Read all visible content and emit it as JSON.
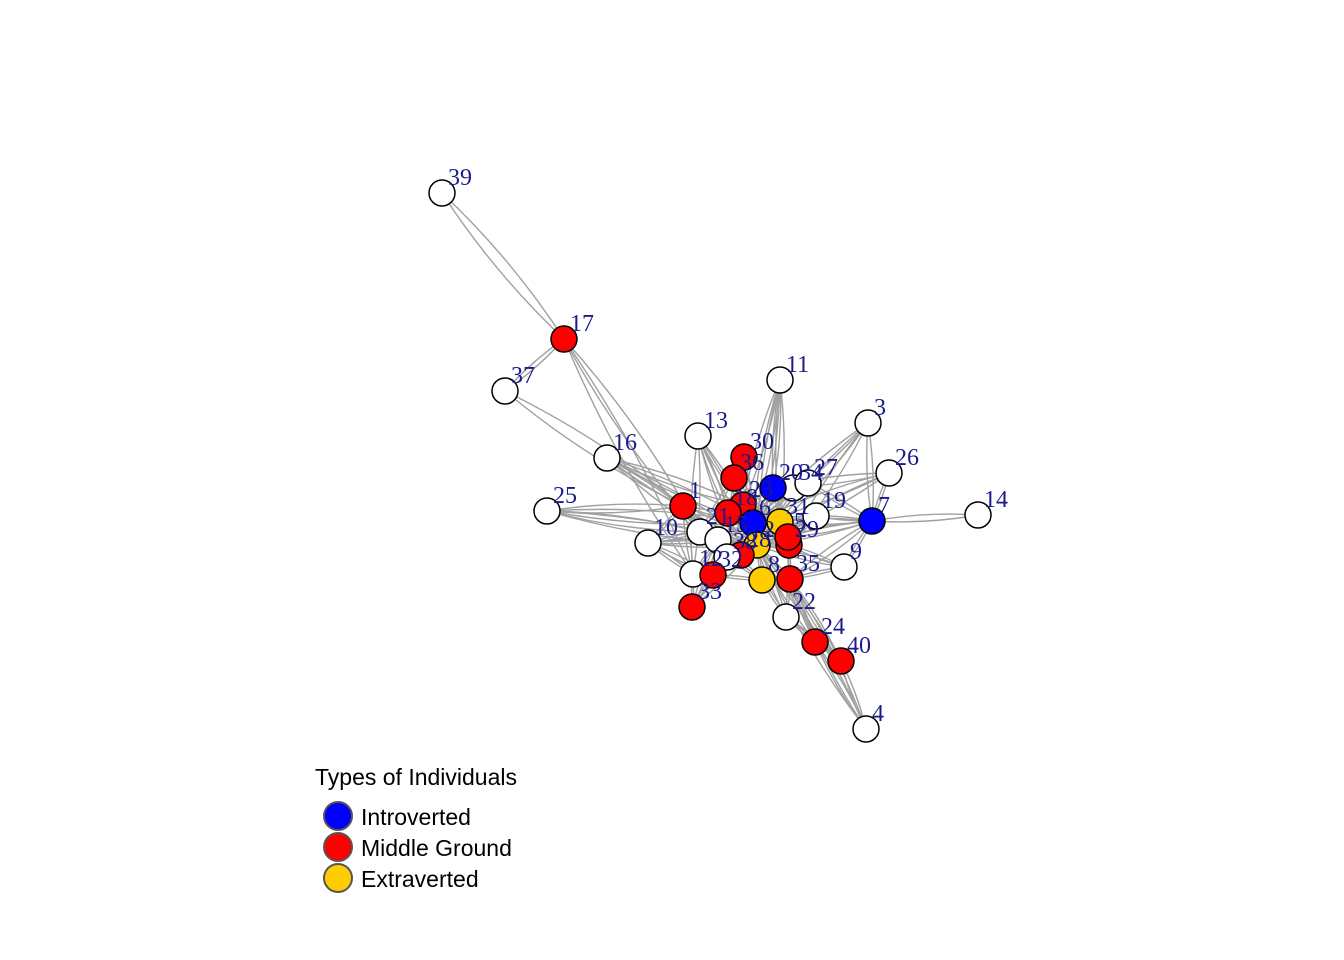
{
  "colors": {
    "introverted": "#0000ff",
    "middle": "#ff0000",
    "extraverted": "#ffcc00",
    "unclassified": "#ffffff",
    "label": "#1a1a8c",
    "edge": "#a0a0a0"
  },
  "legend": {
    "title": "Types of Individuals",
    "items": [
      {
        "label": "Introverted",
        "color": "#0000ff"
      },
      {
        "label": "Middle Ground",
        "color": "#ff0000"
      },
      {
        "label": "Extraverted",
        "color": "#ffcc00"
      }
    ]
  },
  "network": {
    "nodes": [
      {
        "id": "39",
        "type": "none"
      },
      {
        "id": "17",
        "type": "middle"
      },
      {
        "id": "37",
        "type": "none"
      },
      {
        "id": "11",
        "type": "none"
      },
      {
        "id": "3",
        "type": "none"
      },
      {
        "id": "13",
        "type": "none"
      },
      {
        "id": "30",
        "type": "middle"
      },
      {
        "id": "16",
        "type": "none"
      },
      {
        "id": "36",
        "type": "middle"
      },
      {
        "id": "26",
        "type": "none"
      },
      {
        "id": "34",
        "type": "none"
      },
      {
        "id": "27",
        "type": "none"
      },
      {
        "id": "20",
        "type": "introverted"
      },
      {
        "id": "14",
        "type": "none"
      },
      {
        "id": "1",
        "type": "middle"
      },
      {
        "id": "25",
        "type": "none"
      },
      {
        "id": "23",
        "type": "middle"
      },
      {
        "id": "19",
        "type": "none"
      },
      {
        "id": "7",
        "type": "introverted"
      },
      {
        "id": "18",
        "type": "middle"
      },
      {
        "id": "21",
        "type": "none"
      },
      {
        "id": "12",
        "type": "none"
      },
      {
        "id": "31",
        "type": "extraverted"
      },
      {
        "id": "10",
        "type": "none"
      },
      {
        "id": "6",
        "type": "introverted"
      },
      {
        "id": "2",
        "type": "extraverted"
      },
      {
        "id": "29",
        "type": "middle"
      },
      {
        "id": "9",
        "type": "none"
      },
      {
        "id": "15",
        "type": "none"
      },
      {
        "id": "5",
        "type": "middle"
      },
      {
        "id": "28",
        "type": "middle"
      },
      {
        "id": "38",
        "type": "none"
      },
      {
        "id": "8",
        "type": "extraverted"
      },
      {
        "id": "35",
        "type": "middle"
      },
      {
        "id": "32",
        "type": "middle"
      },
      {
        "id": "33",
        "type": "middle"
      },
      {
        "id": "22",
        "type": "none"
      },
      {
        "id": "24",
        "type": "middle"
      },
      {
        "id": "40",
        "type": "middle"
      },
      {
        "id": "4",
        "type": "none"
      }
    ],
    "edges": [
      [
        "39",
        "17"
      ],
      [
        "17",
        "37"
      ],
      [
        "37",
        "1"
      ],
      [
        "17",
        "12"
      ],
      [
        "17",
        "21"
      ],
      [
        "11",
        "2"
      ],
      [
        "11",
        "23"
      ],
      [
        "11",
        "31"
      ],
      [
        "11",
        "6"
      ],
      [
        "11",
        "20"
      ],
      [
        "3",
        "7"
      ],
      [
        "3",
        "2"
      ],
      [
        "3",
        "29"
      ],
      [
        "3",
        "6"
      ],
      [
        "13",
        "2"
      ],
      [
        "13",
        "23"
      ],
      [
        "13",
        "12"
      ],
      [
        "13",
        "18"
      ],
      [
        "13",
        "28"
      ],
      [
        "30",
        "2"
      ],
      [
        "30",
        "6"
      ],
      [
        "30",
        "18"
      ],
      [
        "16",
        "1"
      ],
      [
        "16",
        "2"
      ],
      [
        "16",
        "23"
      ],
      [
        "16",
        "6"
      ],
      [
        "16",
        "28"
      ],
      [
        "36",
        "2"
      ],
      [
        "36",
        "21"
      ],
      [
        "36",
        "31"
      ],
      [
        "26",
        "7"
      ],
      [
        "26",
        "2"
      ],
      [
        "26",
        "6"
      ],
      [
        "26",
        "20"
      ],
      [
        "34",
        "2"
      ],
      [
        "34",
        "6"
      ],
      [
        "27",
        "2"
      ],
      [
        "27",
        "20"
      ],
      [
        "27",
        "7"
      ],
      [
        "20",
        "2"
      ],
      [
        "20",
        "6"
      ],
      [
        "20",
        "29"
      ],
      [
        "14",
        "7"
      ],
      [
        "7",
        "19"
      ],
      [
        "7",
        "9"
      ],
      [
        "7",
        "5"
      ],
      [
        "7",
        "2"
      ],
      [
        "7",
        "6"
      ],
      [
        "7",
        "31"
      ],
      [
        "7",
        "35"
      ],
      [
        "1",
        "2"
      ],
      [
        "1",
        "6"
      ],
      [
        "1",
        "28"
      ],
      [
        "1",
        "21"
      ],
      [
        "1",
        "12"
      ],
      [
        "25",
        "1"
      ],
      [
        "25",
        "2"
      ],
      [
        "25",
        "21"
      ],
      [
        "25",
        "6"
      ],
      [
        "23",
        "2"
      ],
      [
        "23",
        "6"
      ],
      [
        "23",
        "31"
      ],
      [
        "19",
        "2"
      ],
      [
        "19",
        "29"
      ],
      [
        "19",
        "6"
      ],
      [
        "18",
        "6"
      ],
      [
        "18",
        "2"
      ],
      [
        "21",
        "2"
      ],
      [
        "21",
        "10"
      ],
      [
        "21",
        "15"
      ],
      [
        "12",
        "2"
      ],
      [
        "12",
        "15"
      ],
      [
        "12",
        "28"
      ],
      [
        "31",
        "2"
      ],
      [
        "31",
        "29"
      ],
      [
        "31",
        "6"
      ],
      [
        "10",
        "2"
      ],
      [
        "10",
        "6"
      ],
      [
        "10",
        "15"
      ],
      [
        "10",
        "12"
      ],
      [
        "6",
        "2"
      ],
      [
        "6",
        "29"
      ],
      [
        "6",
        "38"
      ],
      [
        "6",
        "15"
      ],
      [
        "2",
        "29"
      ],
      [
        "2",
        "15"
      ],
      [
        "2",
        "5"
      ],
      [
        "2",
        "28"
      ],
      [
        "2",
        "38"
      ],
      [
        "2",
        "8"
      ],
      [
        "2",
        "35"
      ],
      [
        "29",
        "35"
      ],
      [
        "29",
        "5"
      ],
      [
        "9",
        "29"
      ],
      [
        "9",
        "35"
      ],
      [
        "9",
        "2"
      ],
      [
        "15",
        "28"
      ],
      [
        "15",
        "38"
      ],
      [
        "15",
        "8"
      ],
      [
        "5",
        "35"
      ],
      [
        "28",
        "32"
      ],
      [
        "28",
        "38"
      ],
      [
        "38",
        "8"
      ],
      [
        "8",
        "35"
      ],
      [
        "8",
        "32"
      ],
      [
        "35",
        "22"
      ],
      [
        "35",
        "24"
      ],
      [
        "32",
        "33"
      ],
      [
        "32",
        "15"
      ],
      [
        "32",
        "2"
      ],
      [
        "33",
        "2"
      ],
      [
        "33",
        "15"
      ],
      [
        "22",
        "2"
      ],
      [
        "22",
        "8"
      ],
      [
        "22",
        "24"
      ],
      [
        "24",
        "40"
      ],
      [
        "24",
        "2"
      ],
      [
        "24",
        "35"
      ],
      [
        "40",
        "4"
      ],
      [
        "40",
        "2"
      ],
      [
        "40",
        "35"
      ],
      [
        "40",
        "22"
      ],
      [
        "4",
        "24"
      ],
      [
        "4",
        "35"
      ],
      [
        "4",
        "2"
      ],
      [
        "12",
        "32"
      ],
      [
        "12",
        "33"
      ],
      [
        "10",
        "32"
      ],
      [
        "1",
        "15"
      ],
      [
        "1",
        "10"
      ]
    ]
  }
}
